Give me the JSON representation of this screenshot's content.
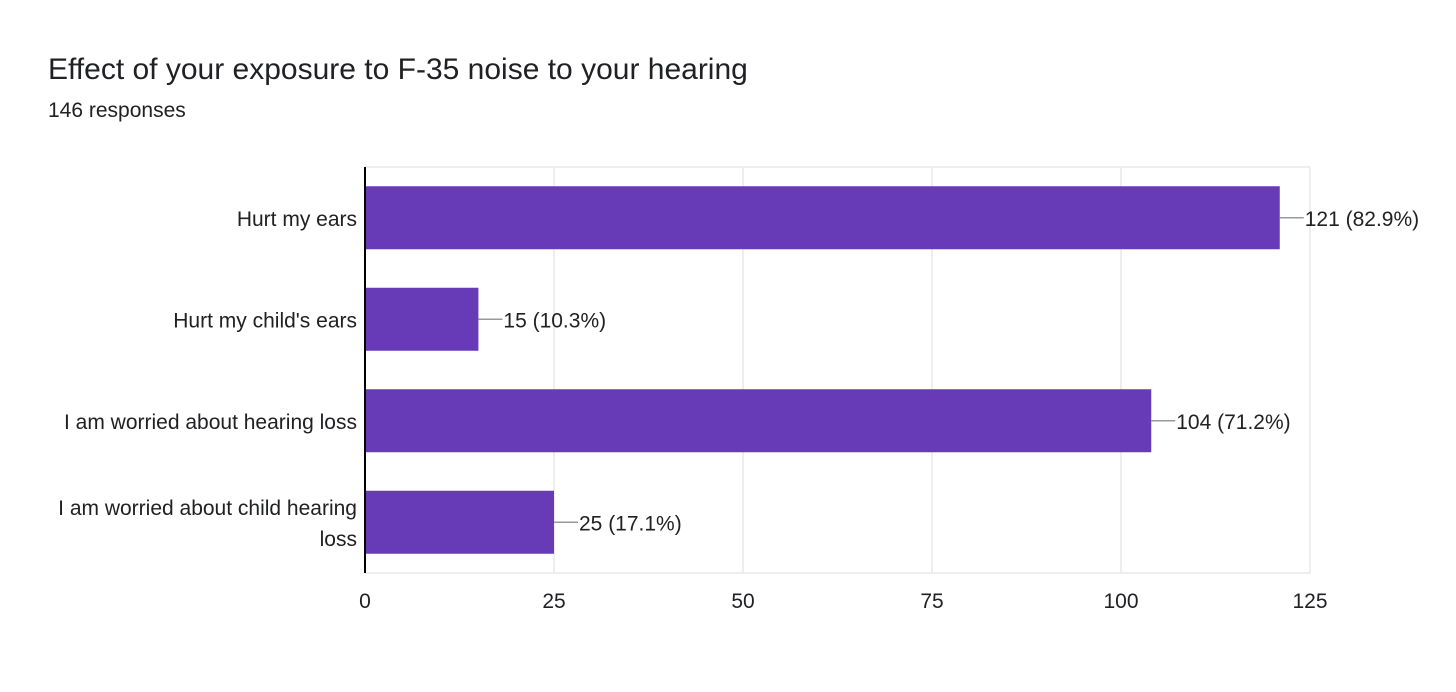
{
  "title": "Effect of your exposure to F-35 noise to your hearing",
  "subtitle": "146 responses",
  "colors": {
    "bar": "#673ab7",
    "grid": "#e8e8e8",
    "axis": "#000000",
    "leader": "#999999"
  },
  "chart_data": {
    "type": "bar",
    "orientation": "horizontal",
    "categories": [
      [
        "Hurt my ears"
      ],
      [
        "Hurt my child's ears"
      ],
      [
        "I am worried about hearing loss"
      ],
      [
        "I am worried about child hearing",
        "loss"
      ]
    ],
    "values": [
      121,
      15,
      104,
      25
    ],
    "data_labels": [
      "121 (82.9%)",
      "15 (10.3%)",
      "104 (71.2%)",
      "25 (17.1%)"
    ],
    "xlim": [
      0,
      125
    ],
    "xticks": [
      0,
      25,
      50,
      75,
      100,
      125
    ],
    "grid": true,
    "legend": "none"
  }
}
